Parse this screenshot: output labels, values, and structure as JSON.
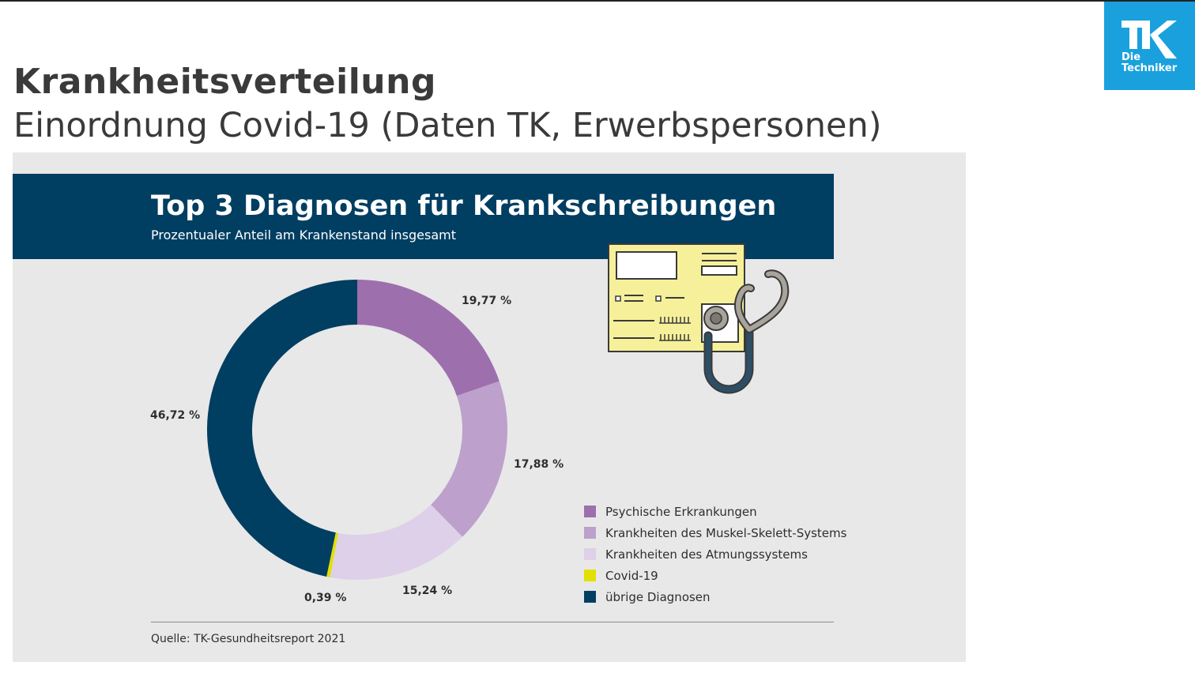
{
  "slide": {
    "title": "Krankheitsverteilung",
    "subtitle": "Einordnung Covid-19 (Daten TK, Erwerbspersonen)"
  },
  "logo": {
    "letters": "TK",
    "line1": "Die",
    "line2": "Techniker",
    "color": "#1aa1dd"
  },
  "chart_data": {
    "type": "pie",
    "title": "Top 3 Diagnosen für Krankschreibungen",
    "subtitle": "Prozentualer Anteil am Krankenstand insgesamt",
    "donut": true,
    "legend_position": "bottom-right",
    "slices": [
      {
        "name": "Psychische Erkrankungen",
        "value": 19.77,
        "label": "19,77 %",
        "color": "#9e6fad"
      },
      {
        "name": "Krankheiten des Muskel-Skelett-Systems",
        "value": 17.88,
        "label": "17,88 %",
        "color": "#bda0cc"
      },
      {
        "name": "Krankheiten des Atmungssystems",
        "value": 15.24,
        "label": "15,24 %",
        "color": "#ddd0e8"
      },
      {
        "name": "Covid-19",
        "value": 0.39,
        "label": "0,39 %",
        "color": "#e3df00"
      },
      {
        "name": "übrige Diagnosen",
        "value": 46.72,
        "label": "46,72 %",
        "color": "#003e62"
      }
    ],
    "source": "Quelle: TK-Gesundheitsreport 2021"
  },
  "colors": {
    "banner": "#003e62",
    "panel": "#e8e8e8",
    "illustration_card": "#f6f09a",
    "stethoscope_tube": "#2d4f66",
    "stethoscope_metal": "#a8a39b"
  }
}
